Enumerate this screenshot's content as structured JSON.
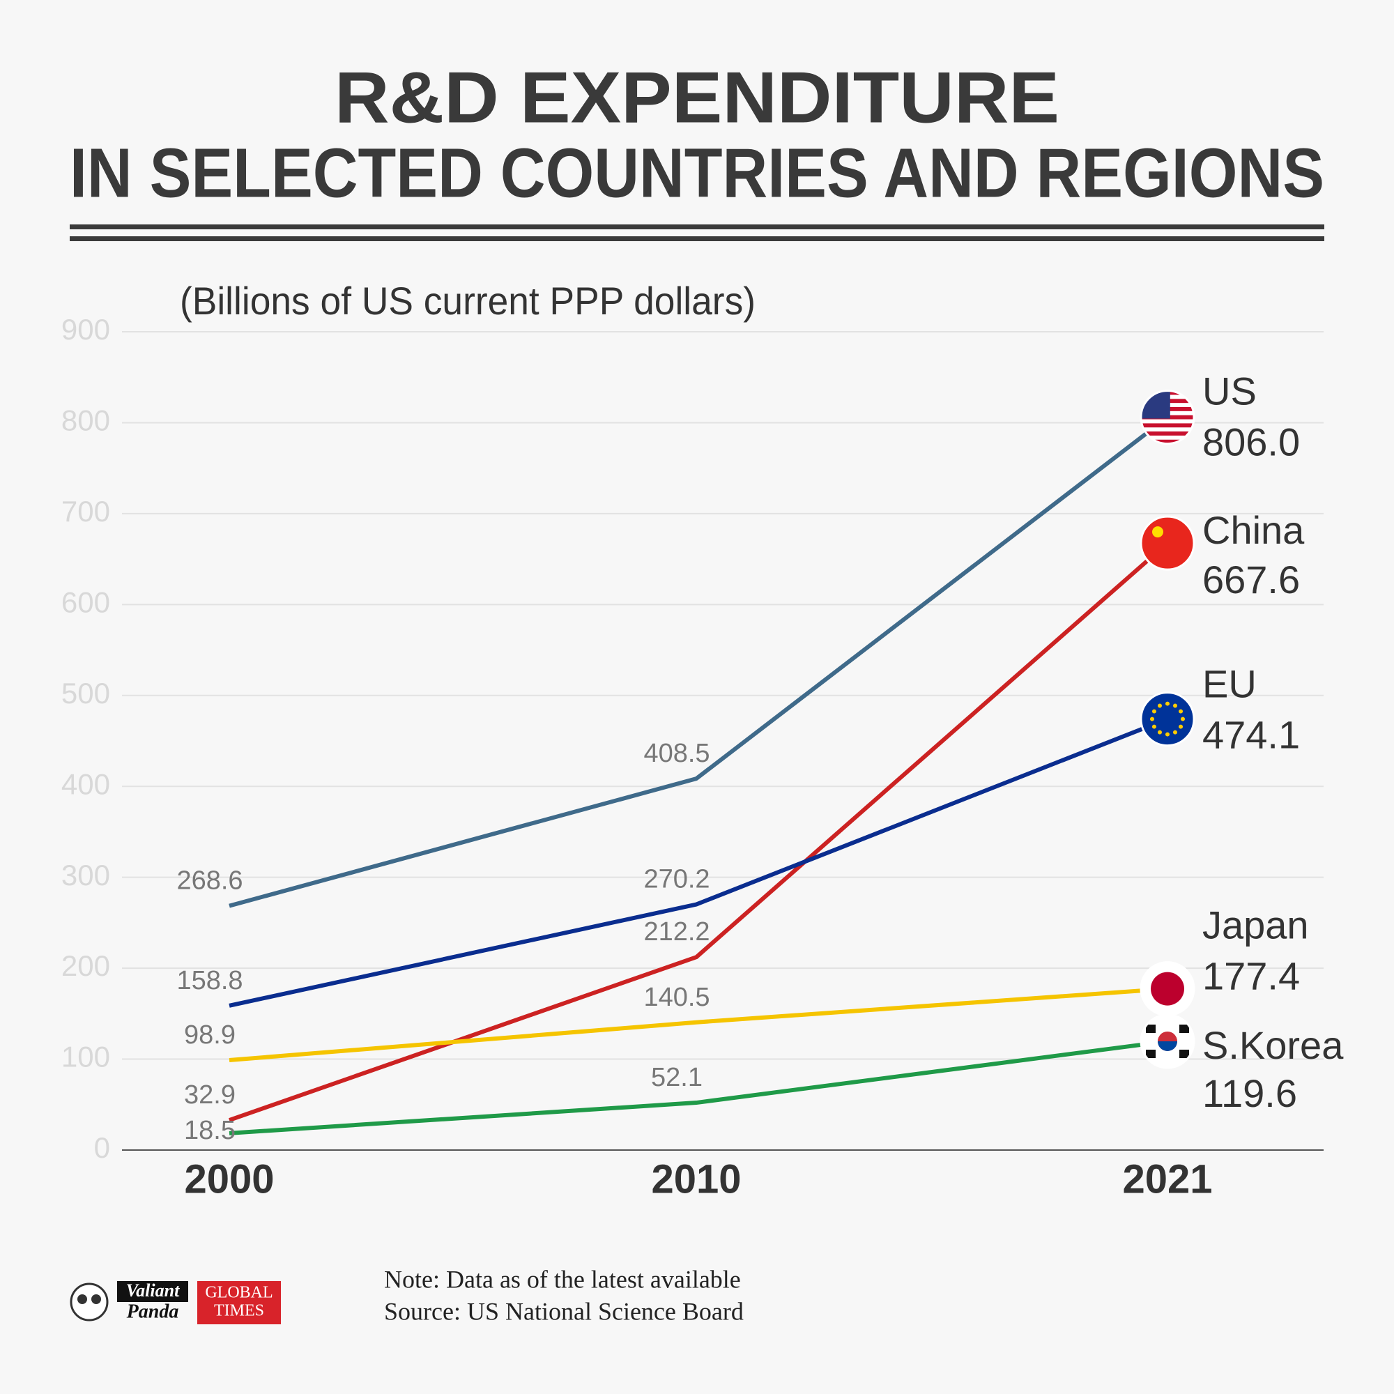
{
  "chart_data": {
    "type": "line",
    "title": "R&D EXPENDITURE",
    "subtitle": "IN SELECTED COUNTRIES AND REGIONS",
    "y_axis_label": "(Billions of US current PPP dollars)",
    "categories": [
      "2000",
      "2010",
      "2021"
    ],
    "series": [
      {
        "name": "US",
        "color": "#3f6a8a",
        "values": [
          268.6,
          408.5,
          806.0
        ],
        "value_labels": [
          "268.6",
          "408.5",
          "806.0"
        ]
      },
      {
        "name": "China",
        "color": "#cc2222",
        "values": [
          32.9,
          212.2,
          667.6
        ]
      },
      {
        "name": "EU",
        "color": "#0a2d8f",
        "values": [
          158.8,
          270.2,
          474.1
        ]
      },
      {
        "name": "Japan",
        "color": "#f5c400",
        "values": [
          98.9,
          140.5,
          177.4
        ]
      },
      {
        "name": "S.Korea",
        "color": "#1f9a48",
        "values": [
          18.5,
          52.1,
          119.6
        ]
      }
    ],
    "ylim": [
      0,
      900
    ],
    "yticks": [
      0,
      100,
      200,
      300,
      400,
      500,
      600,
      700,
      800,
      900
    ],
    "grid": true,
    "note": "Note: Data as of the latest available",
    "source": "Source: US National Science Board",
    "logos": [
      "Valiant",
      "Panda",
      "GLOBAL",
      "TIMES"
    ]
  }
}
